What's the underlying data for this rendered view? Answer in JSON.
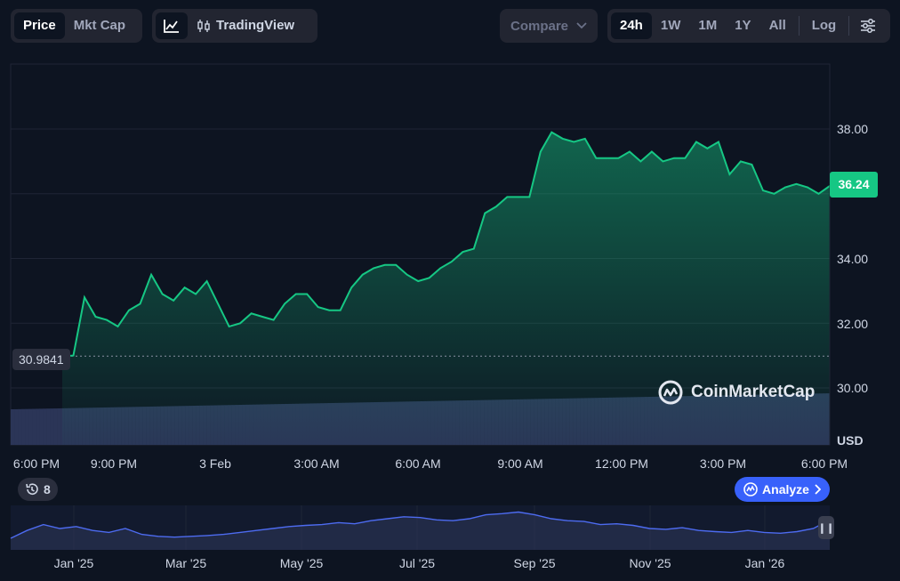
{
  "toolbar": {
    "view_tabs": [
      "Price",
      "Mkt Cap"
    ],
    "active_view": "Price",
    "tradingview_label": "TradingView",
    "compare_label": "Compare",
    "ranges": [
      "24h",
      "1W",
      "1M",
      "1Y",
      "All"
    ],
    "active_range": "24h",
    "log_label": "Log"
  },
  "chart": {
    "current_price": "36.24",
    "open_price": "30.9841",
    "currency_label": "USD",
    "watermark": "CoinMarketCap",
    "y_ticks": [
      "38.00",
      "36.00",
      "34.00",
      "32.00",
      "30.00"
    ],
    "x_ticks": [
      "6:00 PM",
      "9:00 PM",
      "3 Feb",
      "3:00 AM",
      "6:00 AM",
      "9:00 AM",
      "12:00 PM",
      "3:00 PM",
      "6:00 PM"
    ],
    "line_color": "#16c784",
    "down_color": "#ea3943",
    "volume_color": "#2b3557"
  },
  "history_count": "8",
  "analyze_label": "Analyze",
  "navigator": {
    "labels": [
      "Jan '25",
      "Mar '25",
      "May '25",
      "Jul '25",
      "Sep '25",
      "Nov '25",
      "Jan '26"
    ],
    "line_color": "#4d6bf0"
  },
  "chart_data": {
    "type": "area",
    "title": "",
    "xlabel": "",
    "ylabel": "USD",
    "ylim": [
      29.6,
      39.0
    ],
    "x": [
      "6:00 PM",
      "6:40 PM",
      "7:00 PM",
      "7:30 PM",
      "8:00 PM",
      "8:30 PM",
      "9:00 PM",
      "9:30 PM",
      "10:00 PM",
      "10:15 PM",
      "10:30 PM",
      "10:50 PM",
      "11:10 PM",
      "11:30 PM",
      "11:50 PM",
      "12:10 AM",
      "12:30 AM",
      "1:00 AM",
      "1:30 AM",
      "2:00 AM",
      "2:30 AM",
      "2:45 AM",
      "3:00 AM",
      "3:15 AM",
      "3:30 AM",
      "4:00 AM",
      "4:30 AM",
      "4:50 AM",
      "5:10 AM",
      "5:30 AM",
      "5:50 AM",
      "6:10 AM",
      "6:30 AM",
      "6:50 AM",
      "7:10 AM",
      "7:30 AM",
      "7:45 AM",
      "8:00 AM",
      "8:15 AM",
      "8:30 AM",
      "9:00 AM",
      "9:15 AM",
      "9:30 AM",
      "9:45 AM",
      "10:00 AM",
      "10:15 AM",
      "10:30 AM",
      "10:45 AM",
      "11:00 AM",
      "11:30 AM",
      "11:50 AM",
      "12:10 PM",
      "12:30 PM",
      "12:50 PM",
      "1:10 PM",
      "1:30 PM",
      "1:50 PM",
      "2:10 PM",
      "2:30 PM",
      "2:50 PM",
      "3:10 PM",
      "3:30 PM",
      "3:50 PM",
      "4:10 PM",
      "4:30 PM",
      "4:50 PM",
      "5:10 PM",
      "5:30 PM",
      "5:45 PM",
      "6:00 PM"
    ],
    "series": [
      {
        "values": [
          30.98,
          31.0,
          32.8,
          32.2,
          32.1,
          31.9,
          32.4,
          32.6,
          33.5,
          32.9,
          32.7,
          33.1,
          32.9,
          33.3,
          32.6,
          31.9,
          32.0,
          32.3,
          32.2,
          32.1,
          32.6,
          32.9,
          32.9,
          32.5,
          32.4,
          32.4,
          33.1,
          33.5,
          33.7,
          33.8,
          33.8,
          33.5,
          33.3,
          33.4,
          33.7,
          33.9,
          34.2,
          34.3,
          35.4,
          35.6,
          35.9,
          35.9,
          35.9,
          37.3,
          37.9,
          37.7,
          37.6,
          37.7,
          37.1,
          37.1,
          37.1,
          37.3,
          37.0,
          37.3,
          37.0,
          37.1,
          37.1,
          37.6,
          37.4,
          37.6,
          36.6,
          37.0,
          36.9,
          36.1,
          36.0,
          36.2,
          36.3,
          36.2,
          36.0,
          36.24
        ]
      }
    ],
    "open_reference": 30.9841,
    "grid": true,
    "legend": "none"
  }
}
